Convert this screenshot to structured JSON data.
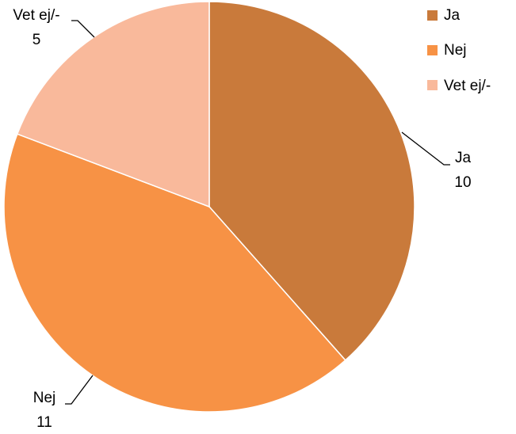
{
  "chart_data": {
    "type": "pie",
    "categories": [
      "Ja",
      "Nej",
      "Vet ej/-"
    ],
    "values": [
      10,
      11,
      5
    ],
    "colors": [
      "#c97a3b",
      "#f79245",
      "#f9b99b"
    ],
    "legend_position": "top-right",
    "data_labels_shown": true
  }
}
